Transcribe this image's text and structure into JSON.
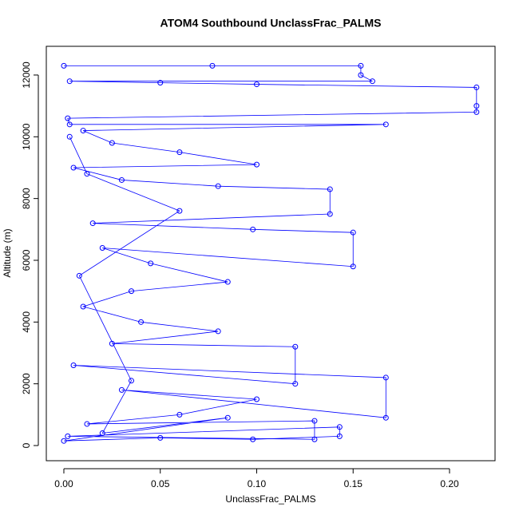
{
  "chart_data": {
    "type": "line",
    "title": "ATOM4 Southbound UnclassFrac_PALMS",
    "xlabel": "UnclassFrac_PALMS",
    "ylabel": "Altitude (m)",
    "xlim": [
      -0.0091,
      0.2236
    ],
    "ylim": [
      -491,
      12930
    ],
    "xticks": [
      {
        "value": 0,
        "label": "0.00"
      },
      {
        "value": 0.05,
        "label": "0.05"
      },
      {
        "value": 0.1,
        "label": "0.10"
      },
      {
        "value": 0.15,
        "label": "0.15"
      },
      {
        "value": 0.2,
        "label": "0.20"
      }
    ],
    "yticks": [
      0,
      2000,
      4000,
      6000,
      8000,
      10000,
      12000
    ],
    "series": [
      {
        "color": "#0000ff",
        "x": [
          0,
          0.077,
          0.154,
          0.154,
          0.16,
          0.003,
          0.05,
          0.1,
          0.214,
          0.214,
          0.214,
          0.002,
          0.003,
          0.167,
          0.01,
          0.025,
          0.06,
          0.1,
          0.005,
          0.03,
          0.08,
          0.138,
          0.138,
          0.015,
          0.098,
          0.15,
          0.15,
          0.02,
          0.045,
          0.085,
          0.035,
          0.01,
          0.04,
          0.08,
          0.025,
          0.12,
          0.12,
          0.005,
          0.167,
          0.167,
          0.03,
          0.1,
          0.06,
          0.012,
          0.13,
          0.13,
          0.002,
          0.143,
          0.143,
          0.098,
          0.05,
          0,
          0.085,
          0.02,
          0.035,
          0.008,
          0.06,
          0.012,
          0.003
        ],
        "values": [
          12300,
          12300,
          12300,
          12000,
          11800,
          11800,
          11750,
          11700,
          11600,
          11000,
          10800,
          10600,
          10400,
          10400,
          10200,
          9800,
          9500,
          9100,
          9000,
          8600,
          8400,
          8300,
          7500,
          7200,
          7000,
          6900,
          5800,
          6400,
          5900,
          5300,
          5000,
          4500,
          4000,
          3700,
          3300,
          3200,
          2000,
          2600,
          2200,
          900,
          1800,
          1500,
          1000,
          700,
          800,
          200,
          300,
          600,
          300,
          200,
          250,
          150,
          900,
          400,
          2100,
          5500,
          7600,
          8800,
          10000
        ]
      }
    ]
  }
}
